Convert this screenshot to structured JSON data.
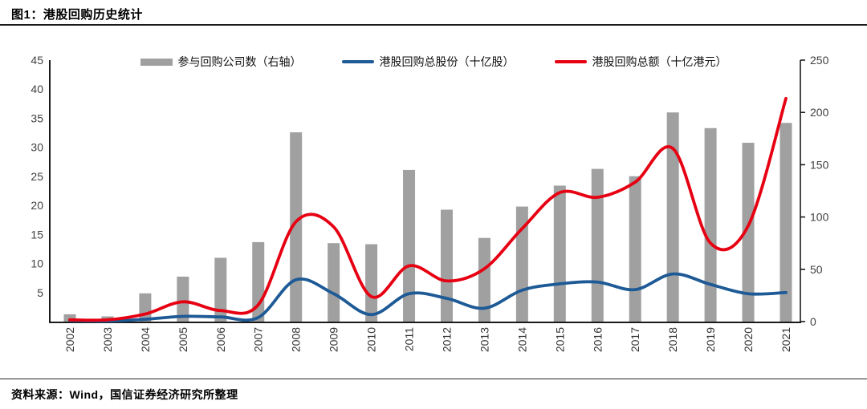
{
  "title": "图1：港股回购历史统计",
  "source": "资料来源：Wind，国信证券经济研究所整理",
  "colors": {
    "bar": "#a0a0a0",
    "line_blue": "#1e5a96",
    "line_red": "#e60012",
    "axis": "#1a1a1a",
    "tick_text": "#404040",
    "year_text": "#333333"
  },
  "chart_data": {
    "type": "bar+line",
    "title": "图1：港股回购历史统计",
    "categories": [
      "2002",
      "2003",
      "2004",
      "2005",
      "2006",
      "2007",
      "2008",
      "2009",
      "2010",
      "2011",
      "2012",
      "2013",
      "2014",
      "2015",
      "2016",
      "2017",
      "2018",
      "2019",
      "2020",
      "2021"
    ],
    "series": [
      {
        "name": "参与回购公司数（右轴）",
        "type": "bar",
        "axis": "right",
        "color": "#a0a0a0",
        "values": [
          7,
          5,
          27,
          43,
          61,
          76,
          181,
          75,
          74,
          145,
          107,
          80,
          110,
          130,
          146,
          139,
          200,
          185,
          171,
          190
        ]
      },
      {
        "name": "港股回购总股份（十亿股）",
        "type": "line",
        "axis": "left",
        "color": "#1e5a96",
        "values": [
          0.2,
          0.1,
          0.4,
          0.9,
          0.8,
          0.7,
          7.2,
          4.8,
          1.2,
          4.8,
          4.0,
          2.3,
          5.4,
          6.5,
          6.8,
          5.5,
          8.2,
          6.4,
          4.8,
          5.0
        ]
      },
      {
        "name": "港股回购总额（十亿港元）",
        "type": "line",
        "axis": "left",
        "color": "#e60012",
        "values": [
          0.3,
          0.3,
          1.3,
          3.4,
          1.9,
          2.9,
          17.2,
          16.3,
          4.3,
          9.6,
          7.0,
          9.1,
          16.0,
          22.2,
          21.4,
          24.0,
          29.8,
          13.5,
          16.5,
          38.4
        ]
      }
    ],
    "left_axis": {
      "min": 0,
      "max": 45,
      "ticks": [
        45,
        40,
        35,
        30,
        25,
        20,
        15,
        10,
        5
      ]
    },
    "right_axis": {
      "min": 0,
      "max": 250,
      "ticks": [
        250,
        200,
        150,
        100,
        50,
        0
      ]
    },
    "legend_position": "top",
    "grid": false
  }
}
